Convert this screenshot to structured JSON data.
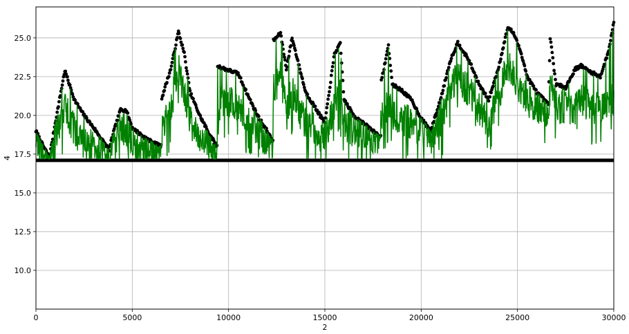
{
  "chart_data": {
    "type": "line",
    "xlabel": "2",
    "ylabel": "4",
    "xlim": [
      0,
      30000
    ],
    "ylim": [
      7.5,
      27.0
    ],
    "grid": true,
    "x_ticks": [
      0,
      5000,
      10000,
      15000,
      20000,
      25000,
      30000
    ],
    "x_tick_labels": [
      "0",
      "5000",
      "10000",
      "15000",
      "20000",
      "25000",
      "30000"
    ],
    "y_ticks": [
      10.0,
      12.5,
      15.0,
      17.5,
      20.0,
      22.5,
      25.0
    ],
    "y_tick_labels": [
      "10.0",
      "12.5",
      "15.0",
      "17.5",
      "20.0",
      "22.5",
      "25.0"
    ],
    "series": [
      {
        "kind": "scatter",
        "color": "#000000",
        "x": [
          0,
          300,
          700,
          1000,
          1500,
          2000,
          2500,
          3000,
          3500,
          3800,
          4000,
          4400,
          4700,
          5000,
          5500,
          6000,
          6500,
          6500,
          7000,
          7400,
          7700,
          8000,
          8500,
          9000,
          9400,
          9400,
          9800,
          10500,
          11000,
          11500,
          12000,
          12300,
          12300,
          12700,
          13000,
          13300,
          13600,
          14000,
          14500,
          15000,
          15500,
          15800,
          16000,
          16500,
          17000,
          17500,
          17900,
          17900,
          18300,
          18500,
          19000,
          19500,
          20000,
          20500,
          21000,
          21500,
          21900,
          22500,
          23000,
          23500,
          24000,
          24500,
          24800,
          25200,
          25500,
          26000,
          26600,
          26700,
          27000,
          27500,
          28000,
          28300,
          28800,
          29300,
          29700,
          30000
        ],
        "y": [
          19.0,
          18.2,
          17.3,
          19.5,
          22.9,
          21.0,
          20.0,
          19.2,
          18.3,
          17.8,
          18.8,
          20.4,
          20.3,
          19.2,
          18.7,
          18.3,
          18.0,
          21.0,
          23.0,
          25.4,
          24.0,
          21.5,
          20.0,
          18.8,
          18.0,
          23.2,
          23.0,
          22.7,
          21.3,
          20.0,
          19.0,
          18.3,
          24.8,
          25.3,
          23.0,
          25.0,
          23.5,
          21.5,
          20.5,
          19.5,
          24.0,
          24.6,
          21.0,
          20.0,
          19.5,
          19.0,
          18.6,
          22.0,
          24.5,
          22.0,
          21.6,
          21.0,
          19.8,
          19.0,
          21.0,
          23.5,
          24.7,
          23.5,
          22.0,
          21.0,
          23.0,
          25.7,
          25.3,
          24.0,
          22.5,
          21.5,
          20.7,
          25.0,
          22.0,
          21.8,
          23.0,
          23.2,
          22.8,
          22.5,
          24.0,
          26.0
        ]
      },
      {
        "kind": "scatter-band",
        "color": "#000000",
        "x_range": [
          0,
          30000
        ],
        "y": 17.1
      },
      {
        "kind": "line",
        "color": "#008000",
        "x": [
          0,
          300,
          700,
          1000,
          1500,
          2000,
          2500,
          3000,
          3500,
          3800,
          4000,
          4400,
          4700,
          5000,
          5500,
          6000,
          6500,
          6500,
          7000,
          7400,
          7700,
          8000,
          8500,
          9000,
          9400,
          9400,
          9800,
          10500,
          11000,
          11500,
          12000,
          12300,
          12300,
          12700,
          13000,
          13300,
          13600,
          14000,
          14500,
          15000,
          15500,
          15800,
          16000,
          16500,
          17000,
          17500,
          17900,
          17900,
          18300,
          18500,
          19000,
          19500,
          20000,
          20500,
          21000,
          21500,
          21900,
          22500,
          23000,
          23500,
          24000,
          24500,
          24800,
          25200,
          25500,
          26000,
          26600,
          26700,
          27000,
          27500,
          28000,
          28300,
          28800,
          29300,
          29700,
          30000
        ],
        "y": [
          18.5,
          17.8,
          17.2,
          18.5,
          20.5,
          19.0,
          18.2,
          18.0,
          17.6,
          17.3,
          18.0,
          19.2,
          19.0,
          18.3,
          18.0,
          17.8,
          17.4,
          19.0,
          20.5,
          23.0,
          21.5,
          19.5,
          18.8,
          18.0,
          17.5,
          20.5,
          21.0,
          20.5,
          19.8,
          19.0,
          18.4,
          18.0,
          21.5,
          22.5,
          20.5,
          21.5,
          20.5,
          19.5,
          19.0,
          18.5,
          20.5,
          21.5,
          19.5,
          19.0,
          18.8,
          18.5,
          18.3,
          19.5,
          21.0,
          20.0,
          19.8,
          19.5,
          19.0,
          18.5,
          19.5,
          21.5,
          22.5,
          21.5,
          20.5,
          19.5,
          21.0,
          23.5,
          22.5,
          21.5,
          21.0,
          20.5,
          20.3,
          22.0,
          20.5,
          20.5,
          20.5,
          21.0,
          20.5,
          20.5,
          21.0,
          21.0
        ]
      }
    ]
  }
}
